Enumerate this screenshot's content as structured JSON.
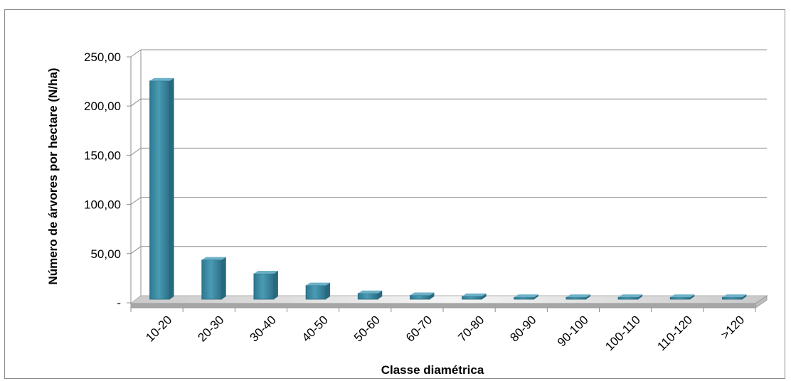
{
  "chart_data": {
    "type": "bar",
    "title": "",
    "xlabel": "Classe diamétrica",
    "ylabel": "Número de árvores por hectare (N/ha)",
    "categories": [
      "10-20",
      "20-30",
      "30-40",
      "40-50",
      "50-60",
      "60-70",
      "70-80",
      "80-90",
      "90-100",
      "100-110",
      "110-120",
      ">120"
    ],
    "values": [
      222,
      40,
      26,
      14,
      6,
      4,
      3,
      2,
      2,
      2,
      2,
      2
    ],
    "ylim": [
      0,
      250
    ],
    "yticks": [
      {
        "value": 0,
        "label": "-"
      },
      {
        "value": 50,
        "label": "50,00"
      },
      {
        "value": 100,
        "label": "100,00"
      },
      {
        "value": 150,
        "label": "150,00"
      },
      {
        "value": 200,
        "label": "200,00"
      },
      {
        "value": 250,
        "label": "250,00"
      }
    ],
    "grid": true,
    "legend": "none",
    "colors": {
      "bar": "#3d8aa3",
      "bar_dark": "#27697f",
      "bar_light": "#6cb1c7",
      "grid": "#8c8c8c",
      "floor": "#d9d9d9"
    }
  }
}
